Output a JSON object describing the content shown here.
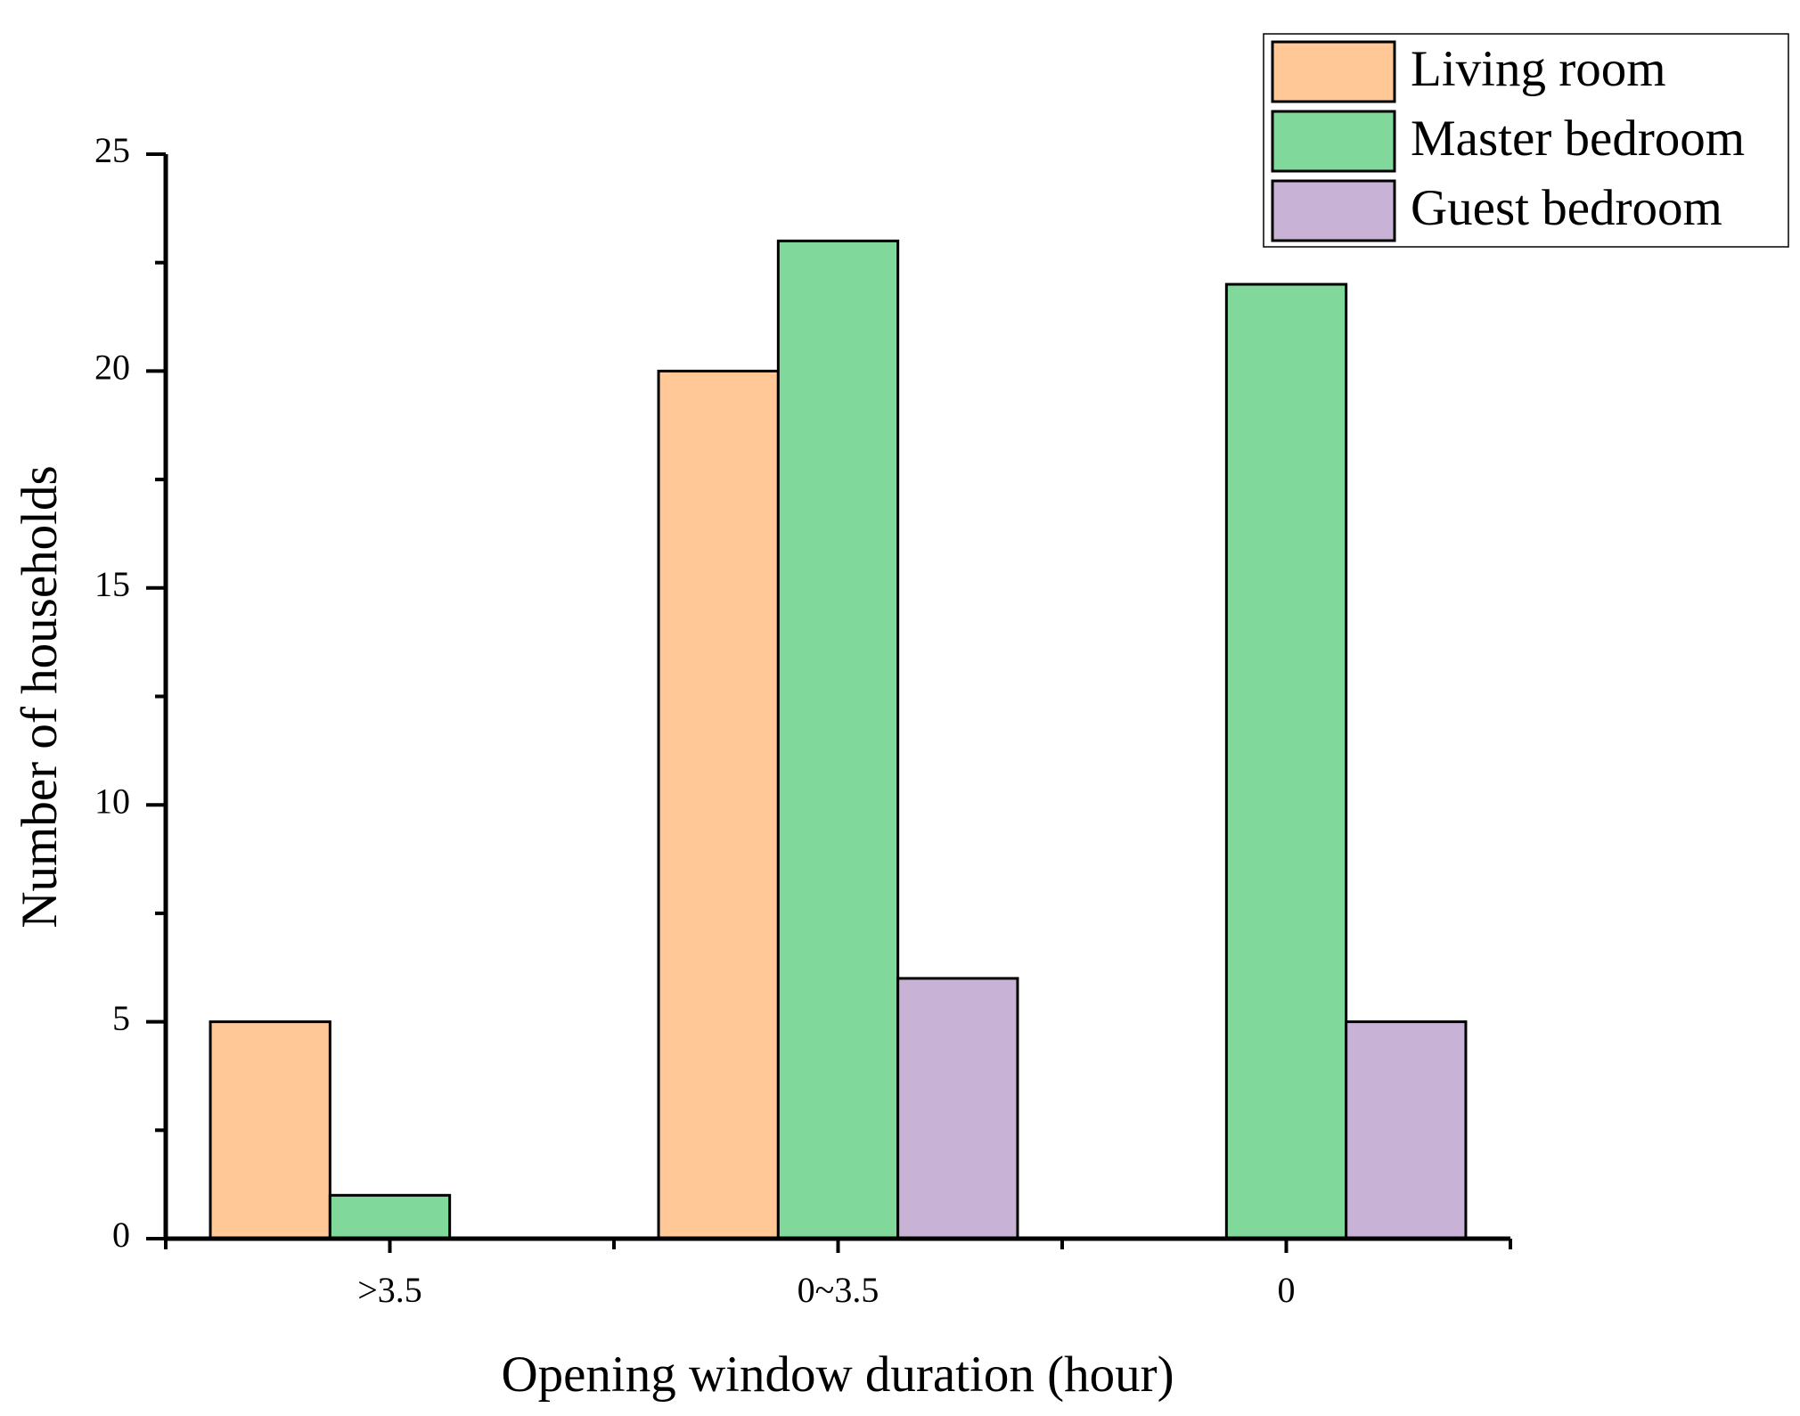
{
  "chart_data": {
    "type": "bar",
    "x_label": "Opening window duration (hour)",
    "y_label": "Number of households",
    "categories": [
      ">3.5",
      "0~3.5",
      "0"
    ],
    "series": [
      {
        "name": "Living room",
        "color": "#FFC896",
        "values": [
          5,
          20,
          0
        ]
      },
      {
        "name": "Master bedroom",
        "color": "#80D99A",
        "values": [
          1,
          23,
          22
        ]
      },
      {
        "name": "Guest bedroom",
        "color": "#C8B3D6",
        "values": [
          0,
          6,
          5
        ]
      }
    ],
    "ylim": [
      0,
      25
    ],
    "yticks": [
      0,
      5,
      10,
      15,
      20,
      25
    ],
    "grid": false,
    "legend": "upper right"
  }
}
